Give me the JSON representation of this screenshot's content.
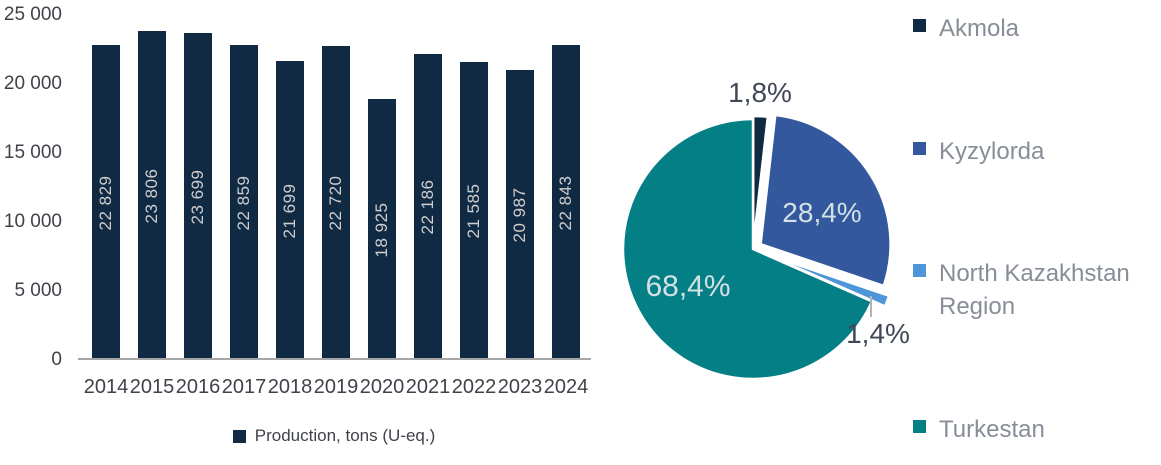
{
  "colors": {
    "navy": "#102a44",
    "blue": "#33589d",
    "light_blue": "#4f95d9",
    "teal": "#047f85",
    "axis_text": "#3f4349",
    "bar_value_text": "#d0cece",
    "legend_text": "#878e98",
    "axis_line": "#a6a6a6"
  },
  "chart_data": [
    {
      "type": "bar",
      "title": "",
      "categories": [
        "2014",
        "2015",
        "2016",
        "2017",
        "2018",
        "2019",
        "2020",
        "2021",
        "2022",
        "2023",
        "2024"
      ],
      "values": [
        22829,
        23806,
        23699,
        22859,
        21699,
        22720,
        18925,
        22186,
        21585,
        20987,
        22843
      ],
      "bar_labels": [
        "22 829",
        "23 806",
        "23 699",
        "22 859",
        "21 699",
        "22 720",
        "18 925",
        "22 186",
        "21 585",
        "20 987",
        "22 843"
      ],
      "xlabel": "",
      "ylabel": "",
      "ylim": [
        0,
        25000
      ],
      "ytick_values": [
        0,
        5000,
        10000,
        15000,
        20000,
        25000
      ],
      "ytick_labels": [
        "0",
        "5 000",
        "10 000",
        "15 000",
        "20 000",
        "25 000"
      ],
      "grid": false,
      "legend_position": "bottom",
      "legend": "Production, tons (U-eq.)",
      "bar_color": "#102a44"
    },
    {
      "type": "pie",
      "title": "",
      "start_angle_deg": 0,
      "direction": "clockwise",
      "legend_position": "right",
      "slices": [
        {
          "label": "Akmola",
          "value_pct": 1.8,
          "display": "1,8%",
          "color": "#102a44"
        },
        {
          "label": "Kyzylorda",
          "value_pct": 28.4,
          "display": "28,4%",
          "color": "#33589d"
        },
        {
          "label": "North Kazakhstan Region",
          "value_pct": 1.4,
          "display": "1,4%",
          "color": "#4f95d9"
        },
        {
          "label": "Turkestan",
          "value_pct": 68.4,
          "display": "68,4%",
          "color": "#047f85"
        }
      ]
    }
  ]
}
